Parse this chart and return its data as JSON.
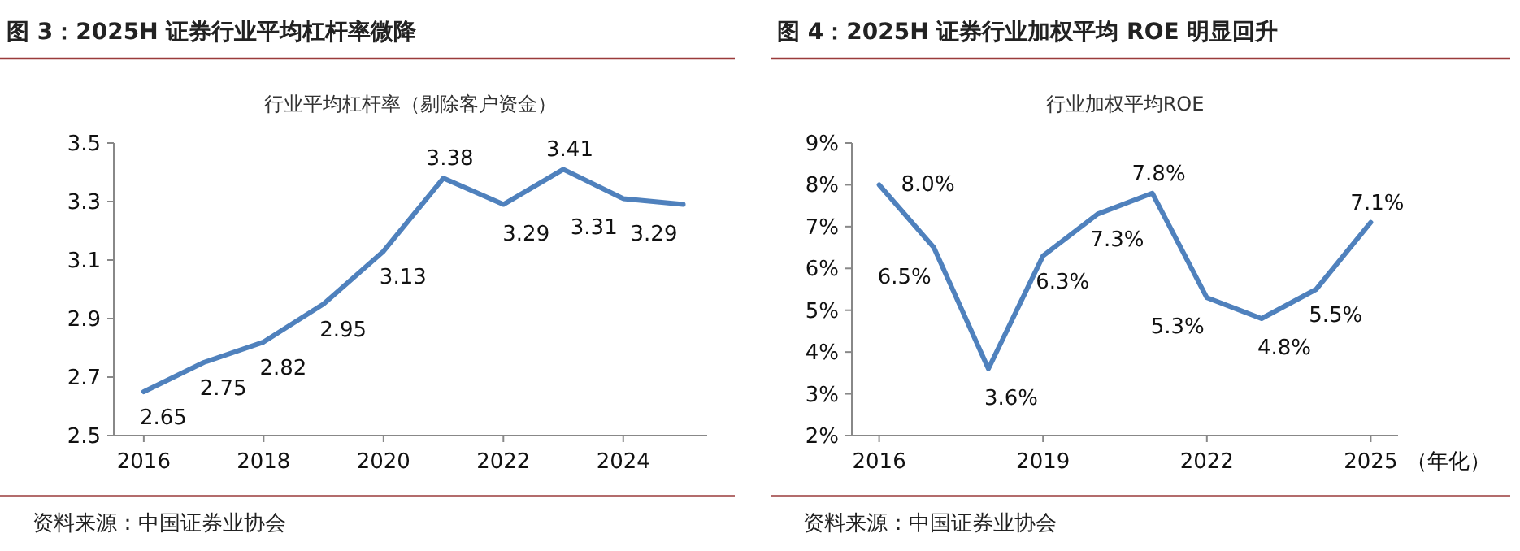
{
  "chart_data": [
    {
      "type": "line",
      "title": "图 3：2025H 证券行业平均杠杆率微降",
      "subtitle": "行业平均杠杆率（剔除客户资金）",
      "x": [
        2016,
        2017,
        2018,
        2019,
        2020,
        2021,
        2022,
        2023,
        2024,
        2025
      ],
      "series": [
        {
          "color": "#4f81bd",
          "values": [
            2.65,
            2.75,
            2.82,
            2.95,
            3.13,
            3.38,
            3.29,
            3.41,
            3.31,
            3.29
          ]
        }
      ],
      "xlim": [
        2015.5,
        2025.4
      ],
      "xticks": [
        2016,
        2018,
        2020,
        2022,
        2024
      ],
      "ylim": [
        2.5,
        3.5
      ],
      "yticks": [
        2.5,
        2.7,
        2.9,
        3.1,
        3.3,
        3.5
      ],
      "data_labels": true,
      "grid": false,
      "marker": "none",
      "line_style": "solid",
      "annotations": [
        "资料来源：中国证券业协会"
      ]
    },
    {
      "type": "line",
      "title": "图 4：2025H 证券行业加权平均 ROE 明显回升",
      "subtitle": "行业加权平均ROE",
      "xlabel": "（年化）",
      "x": [
        2016,
        2017,
        2018,
        2019,
        2020,
        2021,
        2022,
        2023,
        2024,
        2025
      ],
      "series": [
        {
          "color": "#4f81bd",
          "values": [
            8.0,
            6.5,
            3.6,
            6.3,
            7.3,
            7.8,
            5.3,
            4.8,
            5.5,
            7.1
          ],
          "value_labels": [
            "8.0%",
            "6.5%",
            "3.6%",
            "6.3%",
            "7.3%",
            "7.8%",
            "5.3%",
            "4.8%",
            "5.5%",
            "7.1%"
          ]
        }
      ],
      "xlim": [
        2015.5,
        2025.5
      ],
      "xticks": [
        2016,
        2019,
        2022,
        2025
      ],
      "ylim": [
        2,
        9
      ],
      "yticks": [
        {
          "value": 2,
          "label": "2%"
        },
        {
          "value": 3,
          "label": "3%"
        },
        {
          "value": 4,
          "label": "4%"
        },
        {
          "value": 5,
          "label": "5%"
        },
        {
          "value": 6,
          "label": "6%"
        },
        {
          "value": 7,
          "label": "7%"
        },
        {
          "value": 8,
          "label": "8%"
        },
        {
          "value": 9,
          "label": "9%"
        }
      ],
      "grid": false,
      "marker": "none",
      "line_style": "solid",
      "annotations": [
        "资料来源：中国证券业协会"
      ]
    }
  ]
}
